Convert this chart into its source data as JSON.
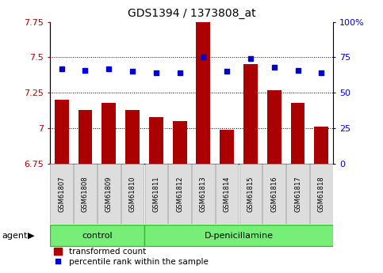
{
  "title": "GDS1394 / 1373808_at",
  "samples": [
    "GSM61807",
    "GSM61808",
    "GSM61809",
    "GSM61810",
    "GSM61811",
    "GSM61812",
    "GSM61813",
    "GSM61814",
    "GSM61815",
    "GSM61816",
    "GSM61817",
    "GSM61818"
  ],
  "transformed_count": [
    7.2,
    7.13,
    7.18,
    7.13,
    7.08,
    7.05,
    7.87,
    6.99,
    7.45,
    7.27,
    7.18,
    7.01
  ],
  "percentile_rank": [
    67,
    66,
    67,
    65,
    64,
    64,
    75,
    65,
    74,
    68,
    66,
    64
  ],
  "ylim_left": [
    6.75,
    7.75
  ],
  "ylim_right": [
    0,
    100
  ],
  "yticks_left": [
    6.75,
    7.0,
    7.25,
    7.5,
    7.75
  ],
  "yticks_right": [
    0,
    25,
    50,
    75,
    100
  ],
  "ytick_labels_left": [
    "6.75",
    "7",
    "7.25",
    "7.5",
    "7.75"
  ],
  "ytick_labels_right": [
    "0",
    "25",
    "50",
    "75",
    "100%"
  ],
  "bar_color": "#aa0000",
  "square_color": "#0000cc",
  "groups": [
    {
      "label": "control",
      "start": 0,
      "end": 4
    },
    {
      "label": "D-penicillamine",
      "start": 4,
      "end": 12
    }
  ],
  "group_color": "#77ee77",
  "group_border_color": "#33bb33",
  "agent_label": "agent",
  "legend_bar_label": "transformed count",
  "legend_sq_label": "percentile rank within the sample",
  "bg_color": "#ffffff",
  "tick_box_color": "#dddddd",
  "tick_box_edge_color": "#aaaaaa"
}
